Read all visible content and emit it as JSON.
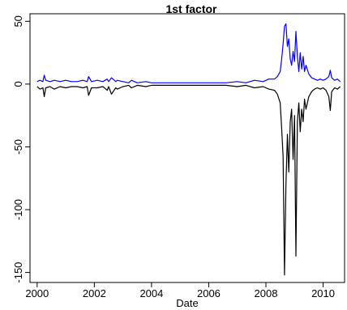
{
  "chart_data": {
    "type": "line",
    "title": "1st factor",
    "xlabel": "Date",
    "ylabel": "",
    "xlim": [
      1999.75,
      2010.75
    ],
    "ylim": [
      -158,
      56
    ],
    "x_ticks": [
      2000,
      2002,
      2004,
      2006,
      2008,
      2010
    ],
    "x_tick_labels": [
      "2000",
      "2002",
      "2004",
      "2006",
      "2008",
      "2010"
    ],
    "y_ticks": [
      50,
      0,
      -50,
      -100,
      -150
    ],
    "y_tick_labels": [
      "50",
      "0",
      "-50",
      "-100",
      "-150"
    ],
    "grid": false,
    "legend": "none",
    "series": [
      {
        "color": "#0000ff",
        "x": [
          2000.0,
          2000.1,
          2000.2,
          2000.25,
          2000.3,
          2000.45,
          2000.6,
          2000.8,
          2001.0,
          2001.2,
          2001.4,
          2001.6,
          2001.75,
          2001.8,
          2001.9,
          2002.1,
          2002.3,
          2002.45,
          2002.5,
          2002.6,
          2002.75,
          2002.8,
          2003.0,
          2003.2,
          2003.3,
          2003.5,
          2003.8,
          2004.0,
          2004.3,
          2004.6,
          2005.0,
          2005.3,
          2005.6,
          2006.0,
          2006.3,
          2006.6,
          2007.0,
          2007.3,
          2007.6,
          2007.9,
          2008.1,
          2008.3,
          2008.4,
          2008.5,
          2008.55,
          2008.6,
          2008.65,
          2008.7,
          2008.75,
          2008.8,
          2008.85,
          2008.9,
          2008.95,
          2009.0,
          2009.05,
          2009.1,
          2009.15,
          2009.2,
          2009.25,
          2009.3,
          2009.35,
          2009.4,
          2009.5,
          2009.6,
          2009.7,
          2009.8,
          2009.9,
          2010.0,
          2010.1,
          2010.2,
          2010.25,
          2010.3,
          2010.4,
          2010.5,
          2010.6
        ],
        "values": [
          2,
          3,
          2,
          7,
          3,
          2,
          3,
          2,
          3,
          2,
          2,
          3,
          2,
          6,
          2,
          3,
          2,
          4,
          2,
          5,
          2,
          3,
          2,
          1,
          3,
          1,
          2,
          1,
          1,
          1,
          1,
          1,
          1,
          1,
          1,
          1,
          2,
          1,
          3,
          2,
          4,
          4,
          6,
          10,
          20,
          32,
          46,
          48,
          30,
          36,
          20,
          15,
          26,
          18,
          42,
          22,
          10,
          25,
          12,
          22,
          10,
          15,
          8,
          5,
          4,
          3,
          4,
          3,
          4,
          6,
          11,
          5,
          3,
          4,
          2
        ]
      },
      {
        "color": "#000000",
        "x": [
          2000.0,
          2000.1,
          2000.2,
          2000.25,
          2000.3,
          2000.45,
          2000.6,
          2000.8,
          2001.0,
          2001.2,
          2001.4,
          2001.6,
          2001.75,
          2001.8,
          2001.9,
          2002.1,
          2002.3,
          2002.45,
          2002.5,
          2002.6,
          2002.75,
          2002.8,
          2003.0,
          2003.2,
          2003.3,
          2003.5,
          2003.8,
          2004.0,
          2004.3,
          2004.6,
          2005.0,
          2005.3,
          2005.6,
          2006.0,
          2006.3,
          2006.6,
          2007.0,
          2007.3,
          2007.6,
          2007.9,
          2008.1,
          2008.3,
          2008.4,
          2008.5,
          2008.55,
          2008.6,
          2008.65,
          2008.7,
          2008.75,
          2008.8,
          2008.85,
          2008.9,
          2008.95,
          2009.0,
          2009.05,
          2009.1,
          2009.15,
          2009.2,
          2009.25,
          2009.3,
          2009.35,
          2009.4,
          2009.5,
          2009.6,
          2009.7,
          2009.8,
          2009.9,
          2010.0,
          2010.1,
          2010.2,
          2010.25,
          2010.3,
          2010.4,
          2010.5,
          2010.6
        ],
        "values": [
          -2,
          -4,
          -3,
          -10,
          -3,
          -2,
          -4,
          -2,
          -3,
          -2,
          -2,
          -3,
          -2,
          -9,
          -3,
          -3,
          -2,
          -5,
          -2,
          -8,
          -3,
          -4,
          -2,
          -1,
          -3,
          -1,
          -2,
          -1,
          -1,
          -1,
          -1,
          -1,
          -1,
          -1,
          -1,
          -1,
          -2,
          -1,
          -3,
          -2,
          -4,
          -5,
          -8,
          -15,
          -35,
          -58,
          -152,
          -80,
          -40,
          -70,
          -30,
          -20,
          -60,
          -25,
          -137,
          -30,
          -15,
          -38,
          -20,
          -30,
          -12,
          -20,
          -10,
          -6,
          -4,
          -3,
          -4,
          -3,
          -5,
          -10,
          -21,
          -6,
          -3,
          -4,
          -2
        ]
      }
    ]
  }
}
